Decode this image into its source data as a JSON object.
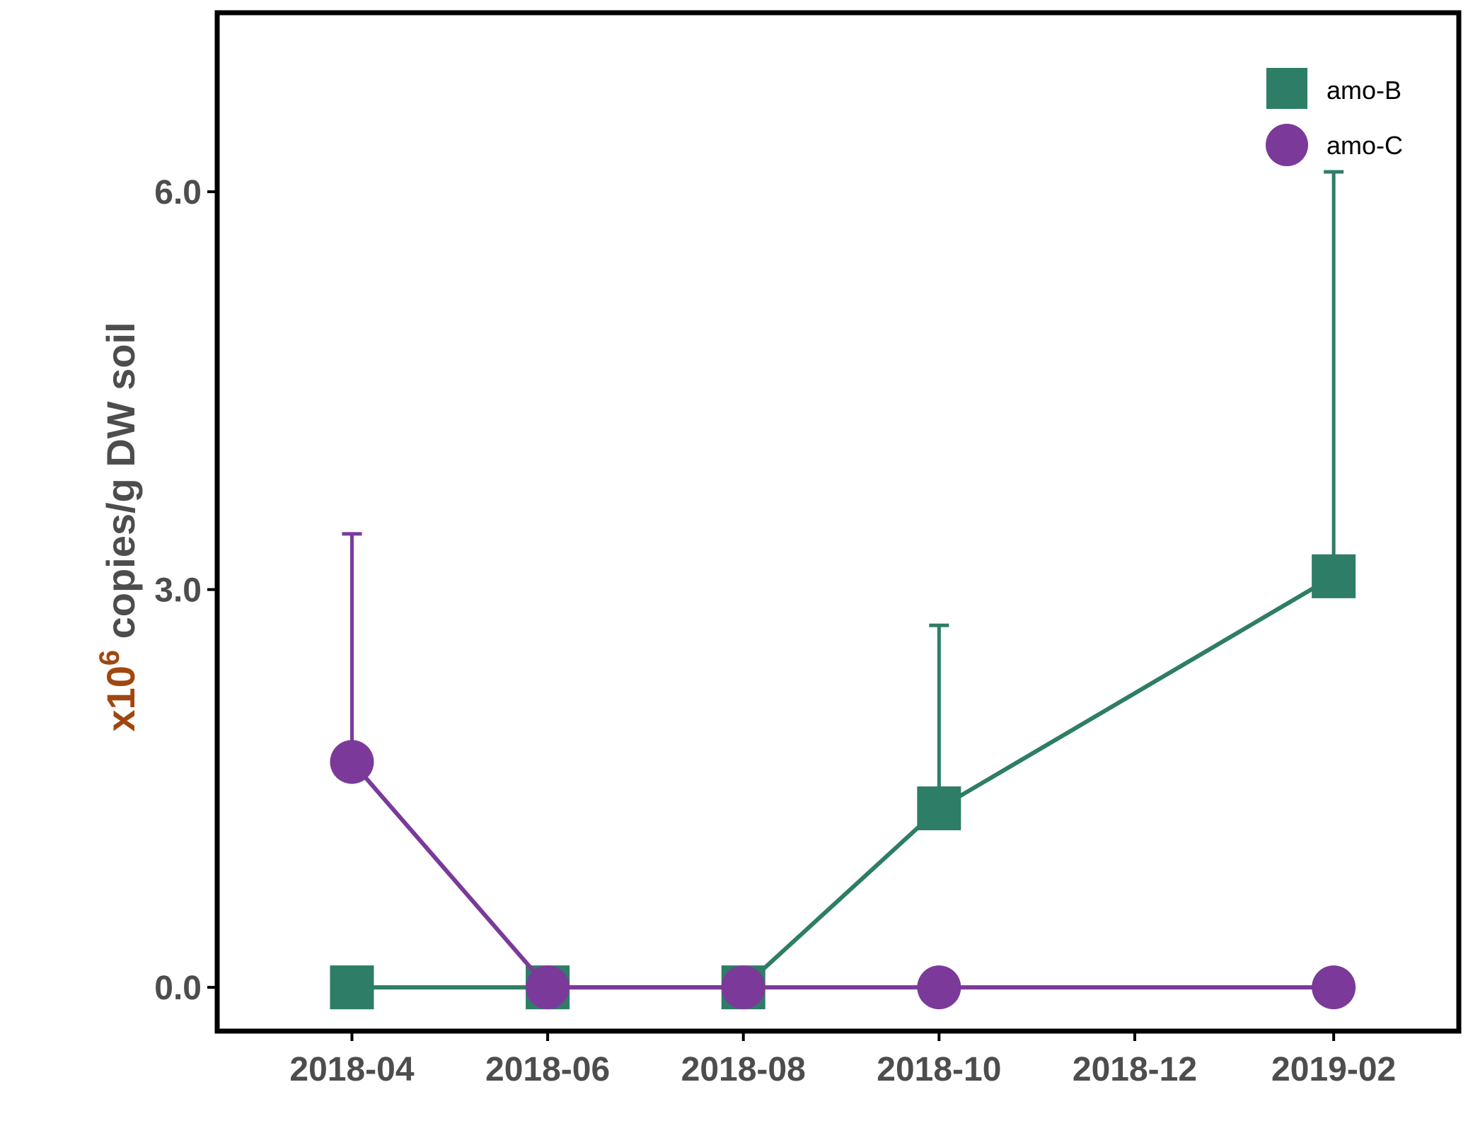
{
  "chart_data": {
    "type": "line",
    "title": "",
    "xlabel": "",
    "ylabel": {
      "prefix": "x10",
      "exponent": "6",
      "suffix": "copies/g DW soil"
    },
    "x": [
      "2018-04-15",
      "2018-06-15",
      "2018-08-15",
      "2018-10-15",
      "2019-02-15"
    ],
    "x_ticks": [
      "2018-04",
      "2018-06",
      "2018-08",
      "2018-10",
      "2018-12",
      "2019-02"
    ],
    "x_tick_dates": [
      "2018-04-15",
      "2018-06-15",
      "2018-08-15",
      "2018-10-15",
      "2018-12-15",
      "2019-02-15"
    ],
    "y_ticks": [
      "0.0",
      "3.0",
      "6.0"
    ],
    "y_tick_values": [
      0,
      3,
      6
    ],
    "ylim": [
      -0.33,
      7.35
    ],
    "xlim": [
      "2018-03-04",
      "2019-03-26"
    ],
    "grid": false,
    "legend_position": "top-right",
    "series": [
      {
        "name": "amo-B",
        "marker": "square",
        "color": "#2e7d67",
        "values": [
          0.0,
          0.0,
          0.0,
          1.35,
          3.1
        ],
        "error_upper": [
          null,
          null,
          null,
          2.73,
          6.15
        ]
      },
      {
        "name": "amo-C",
        "marker": "circle",
        "color": "#7b3a9a",
        "values": [
          1.7,
          0.0,
          0.0,
          0.0,
          0.0
        ],
        "error_upper": [
          3.42,
          null,
          null,
          null,
          null
        ]
      }
    ],
    "colors": {
      "ylabel_prefix": "#a0470f",
      "ylabel_main": "#4d4d4d",
      "axis": "#000000",
      "tick_label": "#4d4d4d"
    }
  }
}
